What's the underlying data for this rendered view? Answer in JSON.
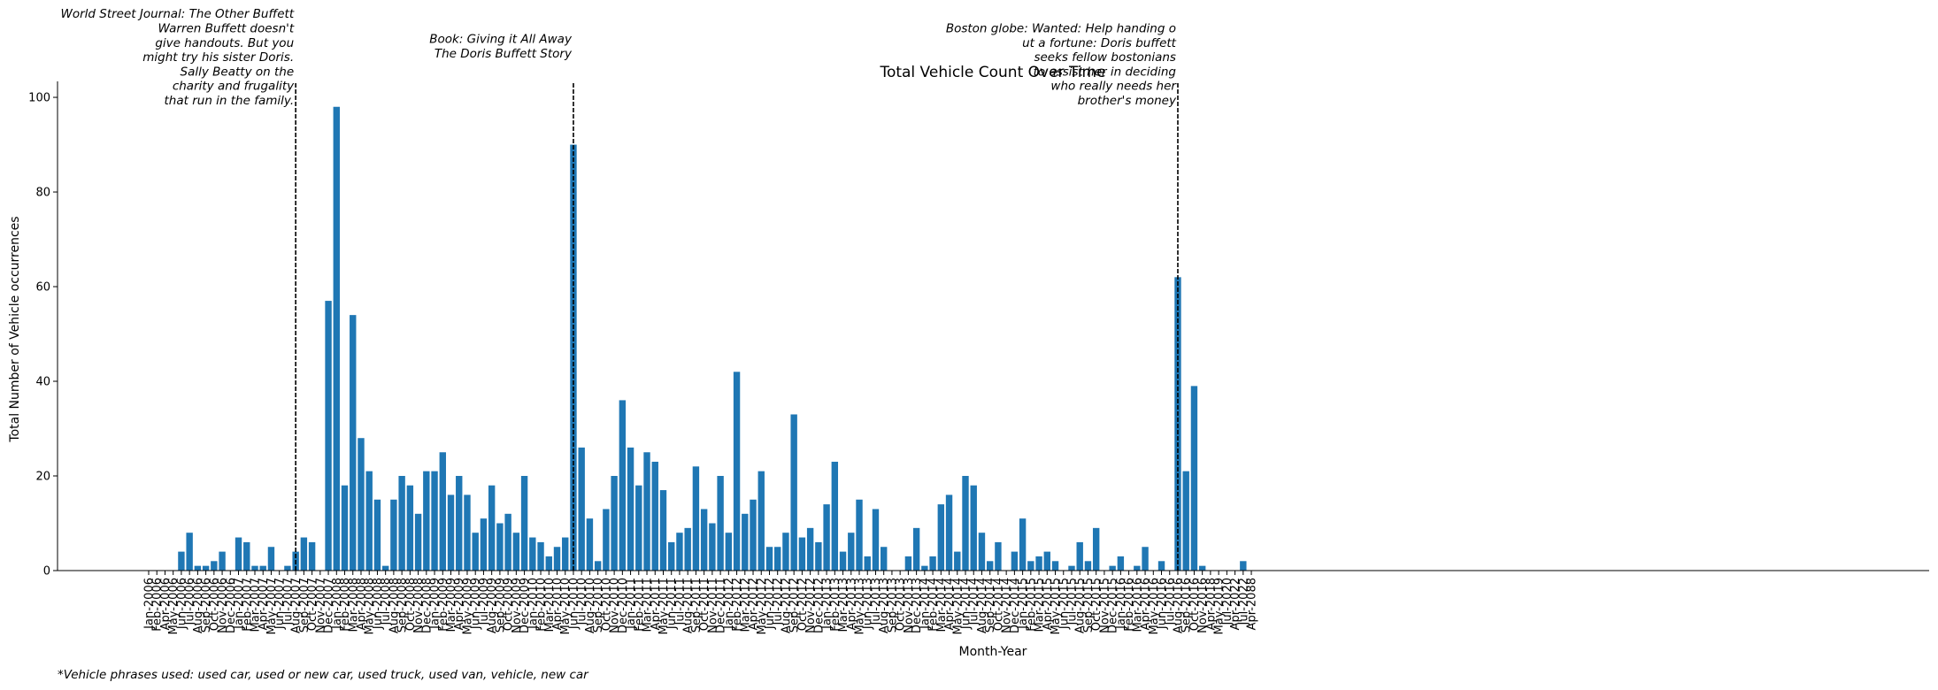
{
  "chart_data": {
    "type": "bar",
    "title": "Total Vehicle Count Over Time",
    "xlabel": "Month-Year",
    "ylabel": "Total Number of Vehicle occurrences",
    "ylim": [
      0,
      103
    ],
    "yticks": [
      0,
      20,
      40,
      60,
      80,
      100
    ],
    "color": "#1f77b4",
    "categories": [
      "Jan-2006",
      "Feb-2006",
      "Apr-2006",
      "May-2006",
      "Jun-2006",
      "Jul-2006",
      "Aug-2006",
      "Sep-2006",
      "Oct-2006",
      "Nov-2006",
      "Dec-2006",
      "Jan-2007",
      "Feb-2007",
      "Mar-2007",
      "Apr-2007",
      "May-2007",
      "Jun-2007",
      "Jul-2007",
      "Aug-2007",
      "Sep-2007",
      "Oct-2007",
      "Nov-2007",
      "Dec-2007",
      "Jan-2008",
      "Feb-2008",
      "Mar-2008",
      "Apr-2008",
      "May-2008",
      "Jun-2008",
      "Jul-2008",
      "Aug-2008",
      "Sep-2008",
      "Oct-2008",
      "Nov-2008",
      "Dec-2008",
      "Jan-2009",
      "Feb-2009",
      "Mar-2009",
      "Apr-2009",
      "May-2009",
      "Jun-2009",
      "Jul-2009",
      "Aug-2009",
      "Sep-2009",
      "Oct-2009",
      "Nov-2009",
      "Dec-2009",
      "Jan-2010",
      "Feb-2010",
      "Mar-2010",
      "Apr-2010",
      "May-2010",
      "Jun-2010",
      "Jul-2010",
      "Aug-2010",
      "Sep-2010",
      "Oct-2010",
      "Nov-2010",
      "Dec-2010",
      "Jan-2011",
      "Feb-2011",
      "Mar-2011",
      "Apr-2011",
      "May-2011",
      "Jun-2011",
      "Jul-2011",
      "Aug-2011",
      "Sep-2011",
      "Oct-2011",
      "Nov-2011",
      "Dec-2011",
      "Jan-2012",
      "Feb-2012",
      "Mar-2012",
      "Apr-2012",
      "May-2012",
      "Jun-2012",
      "Jul-2012",
      "Aug-2012",
      "Sep-2012",
      "Oct-2012",
      "Nov-2012",
      "Dec-2012",
      "Jan-2013",
      "Feb-2013",
      "Mar-2013",
      "Apr-2013",
      "May-2013",
      "Jun-2013",
      "Jul-2013",
      "Aug-2013",
      "Sep-2013",
      "Oct-2013",
      "Nov-2013",
      "Dec-2013",
      "Jan-2014",
      "Feb-2014",
      "Mar-2014",
      "Apr-2014",
      "May-2014",
      "Jun-2014",
      "Jul-2014",
      "Aug-2014",
      "Sep-2014",
      "Oct-2014",
      "Nov-2014",
      "Dec-2014",
      "Jan-2015",
      "Feb-2015",
      "Mar-2015",
      "Apr-2015",
      "May-2015",
      "Jun-2015",
      "Jul-2015",
      "Aug-2015",
      "Sep-2015",
      "Oct-2015",
      "Nov-2015",
      "Dec-2015",
      "Jan-2016",
      "Feb-2016",
      "Mar-2016",
      "Apr-2016",
      "May-2016",
      "Jun-2016",
      "Jul-2016",
      "Aug-2016",
      "Sep-2016",
      "Oct-2016",
      "Nov-2016",
      "Apr-2018",
      "May-2019",
      "Jul-2020",
      "Apr-2022",
      "Jul-2022",
      "Apr-2088"
    ],
    "values": [
      0,
      0,
      0,
      0,
      4,
      8,
      1,
      1,
      2,
      4,
      0,
      7,
      6,
      1,
      1,
      5,
      0,
      1,
      4,
      7,
      6,
      0,
      57,
      98,
      18,
      54,
      28,
      21,
      15,
      1,
      15,
      20,
      18,
      12,
      21,
      21,
      25,
      16,
      20,
      16,
      8,
      11,
      18,
      10,
      12,
      8,
      20,
      7,
      6,
      3,
      5,
      7,
      90,
      26,
      11,
      2,
      13,
      20,
      36,
      26,
      18,
      25,
      23,
      17,
      6,
      8,
      9,
      22,
      13,
      10,
      20,
      8,
      42,
      12,
      15,
      21,
      5,
      5,
      8,
      33,
      7,
      9,
      6,
      14,
      23,
      4,
      8,
      15,
      3,
      13,
      5,
      0,
      0,
      3,
      9,
      1,
      3,
      14,
      16,
      4,
      20,
      18,
      8,
      2,
      6,
      0,
      4,
      11,
      2,
      3,
      4,
      2,
      0,
      1,
      6,
      2,
      9,
      0,
      1,
      3,
      0,
      1,
      5,
      0,
      2,
      0,
      62,
      21,
      39,
      1,
      0,
      0,
      0,
      0,
      2,
      0
    ],
    "annotations": [
      {
        "category": "Aug-2007",
        "lines": [
          "World Street Journal: The Other Buffett",
          "Warren Buffett doesn't",
          "give handouts. But you",
          "might try his sister Doris.",
          "Sally Beatty on the",
          "charity and frugality",
          "that run in the family."
        ]
      },
      {
        "category": "Jun-2010",
        "lines": [
          "Book: Giving it All Away",
          "The Doris Buffett Story"
        ]
      },
      {
        "category": "Aug-2016",
        "lines": [
          "Boston globe: Wanted: Help handing o",
          "ut a fortune: Doris buffett",
          "seeks fellow bostonians",
          "to assist her in deciding",
          "who really needs her",
          "brother's money"
        ]
      }
    ],
    "footnote": "*Vehicle phrases used: used car, used or new car, used truck, used van, vehicle, new car"
  }
}
